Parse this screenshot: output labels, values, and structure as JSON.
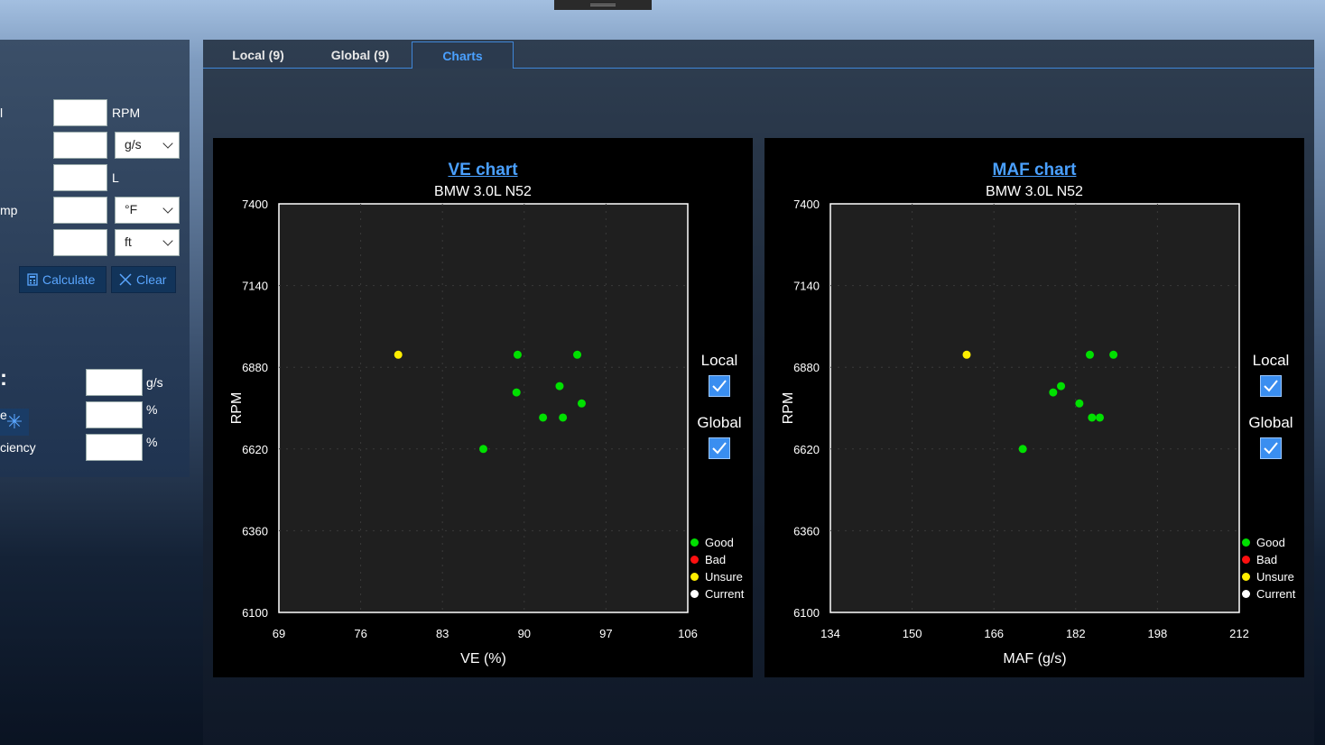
{
  "left_panel": {
    "rows": [
      {
        "label": "l",
        "value": "",
        "unit": "RPM",
        "has_select": false
      },
      {
        "label": "",
        "value": "",
        "unit": "g/s",
        "has_select": true
      },
      {
        "label": "",
        "value": "",
        "unit": "L",
        "has_select": false
      },
      {
        "label": "mp",
        "value": "",
        "unit": "°F",
        "has_select": true
      },
      {
        "label": "",
        "value": "",
        "unit": "ft",
        "has_select": true
      }
    ],
    "calculate_label": "Calculate",
    "clear_label": "Clear",
    "section_colon": ":",
    "results": [
      {
        "label": "",
        "value": "",
        "unit": "g/s"
      },
      {
        "label": "e",
        "value": "",
        "unit": "%"
      },
      {
        "label": "ciency",
        "value": "",
        "unit": "%"
      }
    ]
  },
  "tabs": [
    {
      "label": "Local (9)",
      "active": false
    },
    {
      "label": "Global (9)",
      "active": false
    },
    {
      "label": "Charts",
      "active": true
    }
  ],
  "toggles": {
    "local_label": "Local",
    "global_label": "Global",
    "local_checked": true,
    "global_checked": true
  },
  "legend": [
    {
      "label": "Good",
      "color": "#00e000"
    },
    {
      "label": "Bad",
      "color": "#ff1010"
    },
    {
      "label": "Unsure",
      "color": "#ffee00"
    },
    {
      "label": "Current",
      "color": "#ffffff"
    }
  ],
  "chart_data": [
    {
      "type": "scatter",
      "title": "VE chart",
      "subtitle": "BMW 3.0L  N52",
      "xlabel": "VE (%)",
      "ylabel": "RPM",
      "xlim": [
        69,
        106
      ],
      "ylim": [
        6100,
        7400
      ],
      "xticks": [
        "69",
        "76",
        "83",
        "90",
        "97",
        "106"
      ],
      "yticks": [
        "7400",
        "7140",
        "6880",
        "6620",
        "6360",
        "6100"
      ],
      "grid": true,
      "legend_position": "bottom-right",
      "points": [
        {
          "x": 79.8,
          "y": 6920,
          "status": "Unsure"
        },
        {
          "x": 90.6,
          "y": 6920,
          "status": "Good"
        },
        {
          "x": 96.0,
          "y": 6920,
          "status": "Good"
        },
        {
          "x": 90.5,
          "y": 6800,
          "status": "Good"
        },
        {
          "x": 94.4,
          "y": 6820,
          "status": "Good"
        },
        {
          "x": 96.4,
          "y": 6765,
          "status": "Good"
        },
        {
          "x": 92.9,
          "y": 6720,
          "status": "Good"
        },
        {
          "x": 94.7,
          "y": 6720,
          "status": "Good"
        },
        {
          "x": 87.5,
          "y": 6620,
          "status": "Good"
        }
      ]
    },
    {
      "type": "scatter",
      "title": "MAF chart",
      "subtitle": "BMW 3.0L  N52",
      "xlabel": "MAF (g/s)",
      "ylabel": "RPM",
      "xlim": [
        134,
        212
      ],
      "ylim": [
        6100,
        7400
      ],
      "xticks": [
        "134",
        "150",
        "166",
        "182",
        "198",
        "212"
      ],
      "yticks": [
        "7400",
        "7140",
        "6880",
        "6620",
        "6360",
        "6100"
      ],
      "grid": true,
      "legend_position": "bottom-right",
      "points": [
        {
          "x": 160.0,
          "y": 6920,
          "status": "Unsure"
        },
        {
          "x": 183.5,
          "y": 6920,
          "status": "Good"
        },
        {
          "x": 188.0,
          "y": 6920,
          "status": "Good"
        },
        {
          "x": 176.5,
          "y": 6800,
          "status": "Good"
        },
        {
          "x": 178.0,
          "y": 6820,
          "status": "Good"
        },
        {
          "x": 181.5,
          "y": 6765,
          "status": "Good"
        },
        {
          "x": 183.9,
          "y": 6720,
          "status": "Good"
        },
        {
          "x": 185.4,
          "y": 6720,
          "status": "Good"
        },
        {
          "x": 170.7,
          "y": 6620,
          "status": "Good"
        }
      ]
    }
  ]
}
